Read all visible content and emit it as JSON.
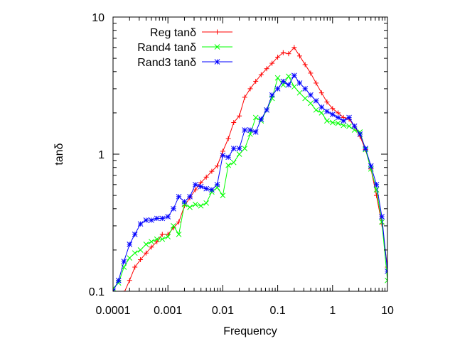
{
  "chart_data": {
    "type": "line",
    "title": "",
    "xlabel": "Frequency",
    "ylabel": "tanδ",
    "x_scale": "log",
    "y_scale": "log",
    "xlim": [
      0.0001,
      10
    ],
    "ylim": [
      0.1,
      10
    ],
    "x_ticks": [
      {
        "value": 0.0001,
        "label": "0.0001"
      },
      {
        "value": 0.001,
        "label": "0.001"
      },
      {
        "value": 0.01,
        "label": "0.01"
      },
      {
        "value": 0.1,
        "label": "0.1"
      },
      {
        "value": 1,
        "label": "1"
      },
      {
        "value": 10,
        "label": "10"
      }
    ],
    "y_ticks": [
      {
        "value": 0.1,
        "label": "0.1"
      },
      {
        "value": 1,
        "label": "1"
      },
      {
        "value": 10,
        "label": "10"
      }
    ],
    "grid": false,
    "legend_position": "top-left",
    "series": [
      {
        "name": "Reg tanδ",
        "color": "#ff0000",
        "marker": "plus",
        "points": [
          [
            0.000158,
            0.097
          ],
          [
            0.0002,
            0.12
          ],
          [
            0.00025,
            0.15
          ],
          [
            0.000316,
            0.17
          ],
          [
            0.0004,
            0.19
          ],
          [
            0.0005,
            0.21
          ],
          [
            0.00063,
            0.23
          ],
          [
            0.00079,
            0.26
          ],
          [
            0.001,
            0.26
          ],
          [
            0.00126,
            0.29
          ],
          [
            0.00158,
            0.32
          ],
          [
            0.002,
            0.42
          ],
          [
            0.00251,
            0.48
          ],
          [
            0.00316,
            0.55
          ],
          [
            0.00398,
            0.62
          ],
          [
            0.005,
            0.68
          ],
          [
            0.0063,
            0.75
          ],
          [
            0.0079,
            0.82
          ],
          [
            0.01,
            1.05
          ],
          [
            0.0126,
            1.3
          ],
          [
            0.0158,
            1.7
          ],
          [
            0.02,
            1.9
          ],
          [
            0.0251,
            2.6
          ],
          [
            0.0316,
            3.0
          ],
          [
            0.0398,
            3.4
          ],
          [
            0.05,
            3.8
          ],
          [
            0.063,
            4.2
          ],
          [
            0.079,
            4.6
          ],
          [
            0.1,
            5.1
          ],
          [
            0.126,
            5.5
          ],
          [
            0.158,
            5.4
          ],
          [
            0.2,
            6.0
          ],
          [
            0.251,
            5.2
          ],
          [
            0.316,
            4.5
          ],
          [
            0.398,
            3.9
          ],
          [
            0.5,
            3.3
          ],
          [
            0.63,
            2.8
          ],
          [
            0.79,
            2.4
          ],
          [
            1.0,
            2.15
          ],
          [
            1.26,
            2.0
          ],
          [
            1.58,
            1.85
          ],
          [
            2.0,
            1.8
          ],
          [
            2.51,
            1.6
          ],
          [
            3.16,
            1.35
          ],
          [
            3.98,
            1.08
          ],
          [
            5.0,
            0.78
          ],
          [
            6.3,
            0.5
          ],
          [
            7.9,
            0.31
          ],
          [
            10.0,
            0.15
          ]
        ]
      },
      {
        "name": "Rand4 tanδ",
        "color": "#00ff00",
        "marker": "cross",
        "points": [
          [
            0.0001,
            0.105
          ],
          [
            0.000126,
            0.115
          ],
          [
            0.000158,
            0.15
          ],
          [
            0.0002,
            0.175
          ],
          [
            0.00025,
            0.19
          ],
          [
            0.000316,
            0.2
          ],
          [
            0.0004,
            0.22
          ],
          [
            0.0005,
            0.23
          ],
          [
            0.00063,
            0.24
          ],
          [
            0.00079,
            0.24
          ],
          [
            0.001,
            0.25
          ],
          [
            0.00126,
            0.3
          ],
          [
            0.00158,
            0.26
          ],
          [
            0.002,
            0.43
          ],
          [
            0.00251,
            0.41
          ],
          [
            0.00316,
            0.43
          ],
          [
            0.00398,
            0.42
          ],
          [
            0.005,
            0.44
          ],
          [
            0.0063,
            0.53
          ],
          [
            0.0079,
            0.57
          ],
          [
            0.01,
            0.5
          ],
          [
            0.0126,
            0.83
          ],
          [
            0.0158,
            0.87
          ],
          [
            0.02,
            1.0
          ],
          [
            0.0251,
            1.1
          ],
          [
            0.0316,
            1.4
          ],
          [
            0.0398,
            1.85
          ],
          [
            0.05,
            1.75
          ],
          [
            0.063,
            2.1
          ],
          [
            0.079,
            2.55
          ],
          [
            0.1,
            3.6
          ],
          [
            0.126,
            3.2
          ],
          [
            0.158,
            3.7
          ],
          [
            0.2,
            3.1
          ],
          [
            0.251,
            2.8
          ],
          [
            0.316,
            2.55
          ],
          [
            0.398,
            2.35
          ],
          [
            0.5,
            2.1
          ],
          [
            0.63,
            2.0
          ],
          [
            0.79,
            1.75
          ],
          [
            1.0,
            1.7
          ],
          [
            1.26,
            1.68
          ],
          [
            1.58,
            1.62
          ],
          [
            2.0,
            1.6
          ],
          [
            2.51,
            1.5
          ],
          [
            3.16,
            1.45
          ],
          [
            3.98,
            1.08
          ],
          [
            5.0,
            0.78
          ],
          [
            6.3,
            0.55
          ],
          [
            7.9,
            0.32
          ],
          [
            10.0,
            0.12
          ]
        ]
      },
      {
        "name": "Rand3 tanδ",
        "color": "#0000ff",
        "marker": "star",
        "points": [
          [
            0.0001,
            0.1
          ],
          [
            0.000126,
            0.12
          ],
          [
            0.000158,
            0.165
          ],
          [
            0.0002,
            0.22
          ],
          [
            0.00025,
            0.26
          ],
          [
            0.000316,
            0.31
          ],
          [
            0.0004,
            0.33
          ],
          [
            0.0005,
            0.33
          ],
          [
            0.00063,
            0.34
          ],
          [
            0.00079,
            0.34
          ],
          [
            0.001,
            0.35
          ],
          [
            0.00126,
            0.4
          ],
          [
            0.00158,
            0.49
          ],
          [
            0.002,
            0.45
          ],
          [
            0.00251,
            0.49
          ],
          [
            0.00316,
            0.6
          ],
          [
            0.00398,
            0.58
          ],
          [
            0.005,
            0.56
          ],
          [
            0.0063,
            0.55
          ],
          [
            0.0079,
            0.6
          ],
          [
            0.01,
            0.98
          ],
          [
            0.0126,
            0.95
          ],
          [
            0.0158,
            1.1
          ],
          [
            0.02,
            1.1
          ],
          [
            0.0251,
            1.5
          ],
          [
            0.0316,
            1.5
          ],
          [
            0.0398,
            1.45
          ],
          [
            0.05,
            1.8
          ],
          [
            0.063,
            2.1
          ],
          [
            0.079,
            2.7
          ],
          [
            0.1,
            3.0
          ],
          [
            0.126,
            3.4
          ],
          [
            0.158,
            3.2
          ],
          [
            0.2,
            3.75
          ],
          [
            0.251,
            3.3
          ],
          [
            0.316,
            3.0
          ],
          [
            0.398,
            2.7
          ],
          [
            0.5,
            2.45
          ],
          [
            0.63,
            2.2
          ],
          [
            0.79,
            2.05
          ],
          [
            1.0,
            1.95
          ],
          [
            1.26,
            1.85
          ],
          [
            1.58,
            1.75
          ],
          [
            2.0,
            1.85
          ],
          [
            2.51,
            1.6
          ],
          [
            3.16,
            1.4
          ],
          [
            3.98,
            1.1
          ],
          [
            5.0,
            0.82
          ],
          [
            6.3,
            0.6
          ],
          [
            7.9,
            0.35
          ],
          [
            10.0,
            0.14
          ]
        ]
      }
    ]
  }
}
